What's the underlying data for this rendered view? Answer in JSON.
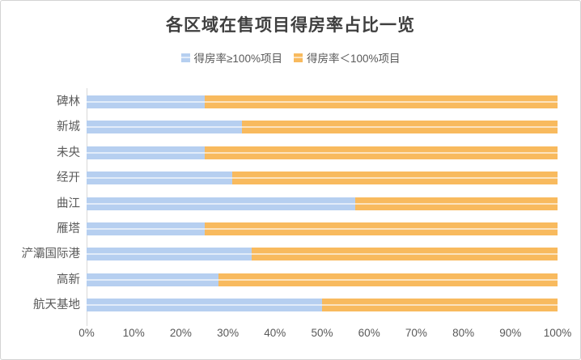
{
  "title": "各区域在售项目得房率占比一览",
  "colors": {
    "series_ge100": "#B6CFF0",
    "series_lt100": "#F8BA5E",
    "title_text": "#3F3F3F",
    "axis_text": "#595959",
    "axis_line": "#D9D9D9",
    "border": "#D3D3D3"
  },
  "legend": {
    "items": [
      {
        "label": "得房率≥100%项目",
        "color": "#B6CFF0"
      },
      {
        "label": "得房率＜100%项目",
        "color": "#F8BA5E"
      }
    ]
  },
  "chart_data": {
    "type": "bar",
    "orientation": "horizontal",
    "stacked": true,
    "title": "各区域在售项目得房率占比一览",
    "categories": [
      "碑林",
      "新城",
      "未央",
      "经开",
      "曲江",
      "雁塔",
      "浐灞国际港",
      "高新",
      "航天基地"
    ],
    "series": [
      {
        "name": "得房率≥100%项目",
        "color": "#B6CFF0",
        "values": [
          25,
          33,
          25,
          31,
          57,
          25,
          35,
          28,
          50
        ]
      },
      {
        "name": "得房率＜100%项目",
        "color": "#F8BA5E",
        "values": [
          75,
          67,
          75,
          69,
          43,
          75,
          65,
          72,
          50
        ]
      }
    ],
    "x_ticks": [
      "0%",
      "10%",
      "20%",
      "30%",
      "40%",
      "50%",
      "60%",
      "70%",
      "80%",
      "90%",
      "100%"
    ],
    "xlim": [
      0,
      100
    ],
    "grid": false,
    "legend_position": "top"
  }
}
